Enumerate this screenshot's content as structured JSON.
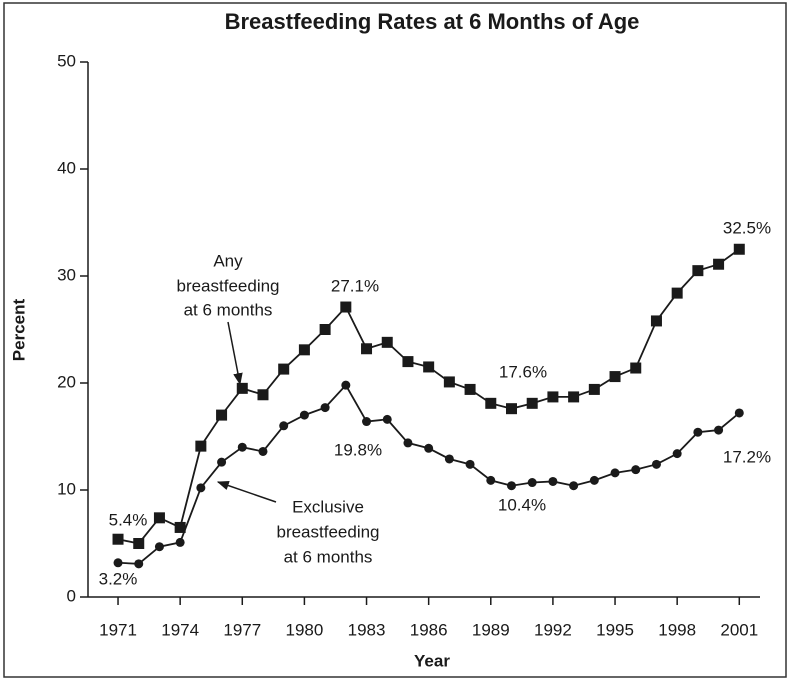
{
  "chart_data": {
    "type": "line",
    "title": "Breastfeeding Rates at 6 Months of Age",
    "xlabel": "Year",
    "ylabel": "Percent",
    "x": [
      1971,
      1972,
      1973,
      1974,
      1975,
      1976,
      1977,
      1978,
      1979,
      1980,
      1981,
      1982,
      1983,
      1984,
      1985,
      1986,
      1987,
      1988,
      1989,
      1990,
      1991,
      1992,
      1993,
      1994,
      1995,
      1996,
      1997,
      1998,
      1999,
      2000,
      2001
    ],
    "series": [
      {
        "label_lines": [
          "Any",
          "breastfeeding",
          "at 6 months"
        ],
        "marker": "square",
        "color": "#1a1a1a",
        "values": [
          5.4,
          5.0,
          7.4,
          6.5,
          14.1,
          17.0,
          19.5,
          18.9,
          21.3,
          23.1,
          25.0,
          27.1,
          23.2,
          23.8,
          22.0,
          21.5,
          20.1,
          19.4,
          18.1,
          17.6,
          18.1,
          18.7,
          18.7,
          19.4,
          20.6,
          21.4,
          25.8,
          28.4,
          30.5,
          31.1,
          32.5
        ]
      },
      {
        "label_lines": [
          "Exclusive",
          "breastfeeding",
          "at 6 months"
        ],
        "marker": "circle",
        "color": "#1a1a1a",
        "values": [
          3.2,
          3.1,
          4.7,
          5.1,
          10.2,
          12.6,
          14.0,
          13.6,
          16.0,
          17.0,
          17.7,
          19.8,
          16.4,
          16.6,
          14.4,
          13.9,
          12.9,
          12.4,
          10.9,
          10.4,
          10.7,
          10.8,
          10.4,
          10.9,
          11.6,
          11.9,
          12.4,
          13.4,
          15.4,
          15.6,
          17.2
        ]
      }
    ],
    "annotations": [
      "5.4%",
      "3.2%",
      "27.1%",
      "19.8%",
      "17.6%",
      "10.4%",
      "32.5%",
      "17.2%"
    ],
    "xlim": [
      1969.55,
      2002
    ],
    "xticks": [
      1971,
      1974,
      1977,
      1980,
      1983,
      1986,
      1989,
      1992,
      1995,
      1998,
      2001
    ],
    "ylim": [
      0,
      50
    ],
    "yticks": [
      0,
      10,
      20,
      30,
      40,
      50
    ],
    "grid": false
  }
}
